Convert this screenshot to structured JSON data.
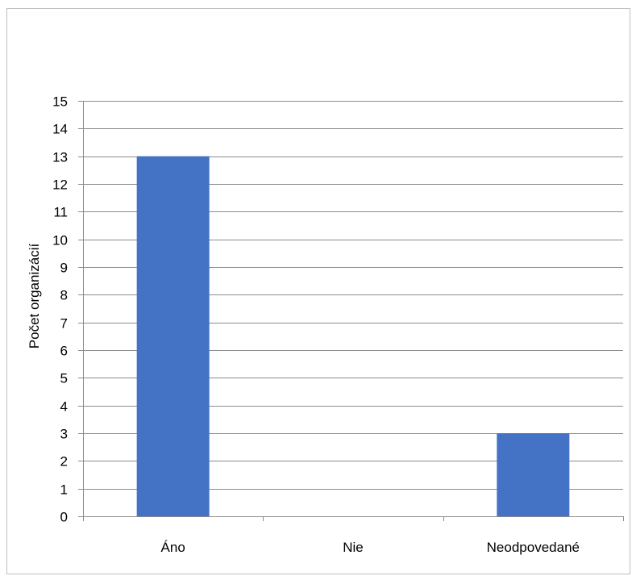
{
  "chart_data": {
    "type": "bar",
    "categories": [
      "Áno",
      "Nie",
      "Neodpovedané"
    ],
    "values": [
      13,
      0,
      3
    ],
    "title": "",
    "xlabel": "",
    "ylabel": "Počet organizácií",
    "ylim": [
      0,
      15
    ],
    "ytick_step": 1,
    "grid": true,
    "legend": "none",
    "colors": {
      "bar": "#4472c4",
      "grid": "#8c8c8c",
      "axis": "#8c8c8c"
    }
  }
}
